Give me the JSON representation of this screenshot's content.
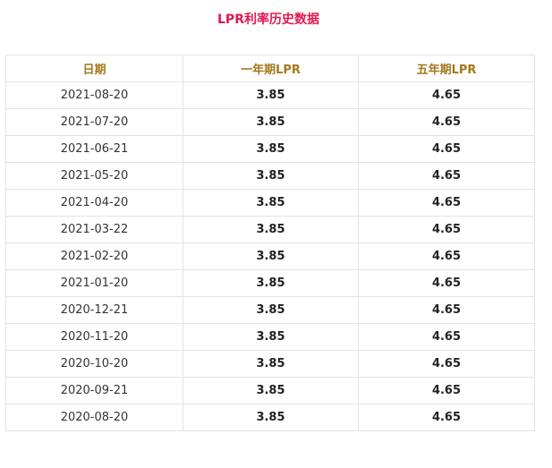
{
  "title": "LPR利率历史数据",
  "table": {
    "headers": [
      "日期",
      "一年期LPR",
      "五年期LPR"
    ],
    "rows": [
      [
        "2021-08-20",
        "3.85",
        "4.65"
      ],
      [
        "2021-07-20",
        "3.85",
        "4.65"
      ],
      [
        "2021-06-21",
        "3.85",
        "4.65"
      ],
      [
        "2021-05-20",
        "3.85",
        "4.65"
      ],
      [
        "2021-04-20",
        "3.85",
        "4.65"
      ],
      [
        "2021-03-22",
        "3.85",
        "4.65"
      ],
      [
        "2021-02-20",
        "3.85",
        "4.65"
      ],
      [
        "2021-01-20",
        "3.85",
        "4.65"
      ],
      [
        "2020-12-21",
        "3.85",
        "4.65"
      ],
      [
        "2020-11-20",
        "3.85",
        "4.65"
      ],
      [
        "2020-10-20",
        "3.85",
        "4.65"
      ],
      [
        "2020-09-21",
        "3.85",
        "4.65"
      ],
      [
        "2020-08-20",
        "3.85",
        "4.65"
      ]
    ]
  },
  "colors": {
    "title": "#e0194f",
    "header_text": "#a5781c",
    "border": "#e3e3e3"
  }
}
